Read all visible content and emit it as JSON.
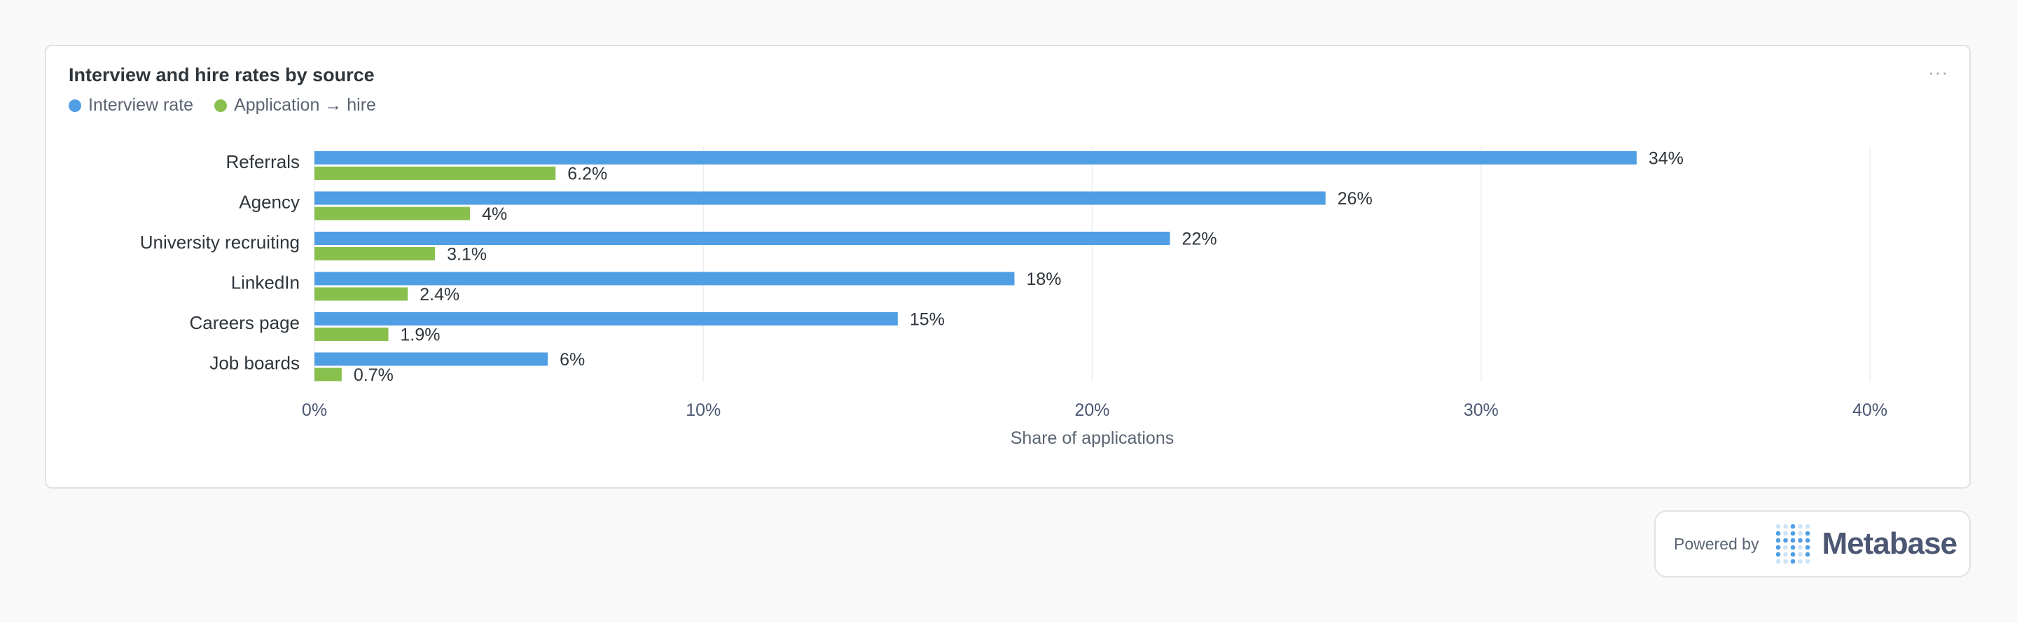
{
  "card": {
    "title": "Interview and hire rates by source",
    "menu_glyph": "···"
  },
  "colors": {
    "interview": "#509ee3",
    "hire": "#88bf4d",
    "grid": "#ebedf0",
    "axis_text": "#4c5773"
  },
  "chart_data": {
    "type": "bar",
    "orientation": "horizontal",
    "categories": [
      "Referrals",
      "Agency",
      "University recruiting",
      "LinkedIn",
      "Careers page",
      "Job boards"
    ],
    "series": [
      {
        "name": "Interview rate",
        "values": [
          34,
          26,
          22,
          18,
          15,
          6
        ],
        "labels": [
          "34%",
          "26%",
          "22%",
          "18%",
          "15%",
          "6%"
        ]
      },
      {
        "name": "Application → hire",
        "values": [
          6.2,
          4,
          3.1,
          2.4,
          1.9,
          0.7
        ],
        "labels": [
          "6.2%",
          "4%",
          "3.1%",
          "2.4%",
          "1.9%",
          "0.7%"
        ]
      }
    ],
    "xlim": [
      0,
      40
    ],
    "xticks": [
      0,
      10,
      20,
      30,
      40
    ],
    "xtick_labels": [
      "0%",
      "10%",
      "20%",
      "30%",
      "40%"
    ],
    "xlabel": "Share of applications",
    "ylabel": "",
    "grid": true,
    "legend": "top-left"
  },
  "footer": {
    "powered_by": "Powered by",
    "brand": "Metabase"
  }
}
